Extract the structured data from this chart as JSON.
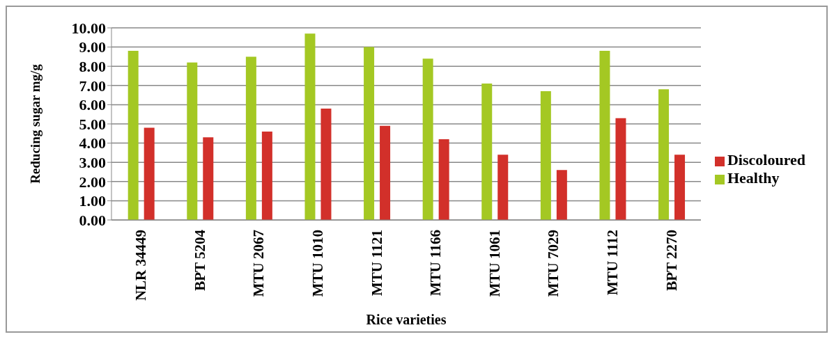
{
  "chart_data": {
    "type": "bar",
    "xlabel": "Rice varieties",
    "ylabel": "Reducing sugar mg/g",
    "categories": [
      "NLR 34449",
      "BPT 5204",
      "MTU 2067",
      "MTU 1010",
      "MTU 1121",
      "MTU 1166",
      "MTU 1061",
      "MTU 7029",
      "MTU 1112",
      "BPT 2270"
    ],
    "series": [
      {
        "name": "Healthy",
        "color": "#a4c823",
        "values": [
          8.8,
          8.2,
          8.5,
          9.7,
          9.0,
          8.4,
          7.1,
          6.7,
          8.8,
          6.8
        ]
      },
      {
        "name": "Discoloured",
        "color": "#d2302a",
        "values": [
          4.8,
          4.3,
          4.6,
          5.8,
          4.9,
          4.2,
          3.4,
          2.6,
          5.3,
          3.4
        ]
      }
    ],
    "ylim": [
      0,
      10
    ],
    "yticks": [
      {
        "value": 0,
        "label": "0.00"
      },
      {
        "value": 1,
        "label": "1.00"
      },
      {
        "value": 2,
        "label": "2.00"
      },
      {
        "value": 3,
        "label": "3.00"
      },
      {
        "value": 4,
        "label": "4.00"
      },
      {
        "value": 5,
        "label": "5.00"
      },
      {
        "value": 6,
        "label": "6.00"
      },
      {
        "value": 7,
        "label": "7.00"
      },
      {
        "value": 8,
        "label": "8.00"
      },
      {
        "value": 9,
        "label": "9.00"
      },
      {
        "value": 10,
        "label": "10.00"
      }
    ],
    "grid": "y",
    "legend": "right"
  }
}
